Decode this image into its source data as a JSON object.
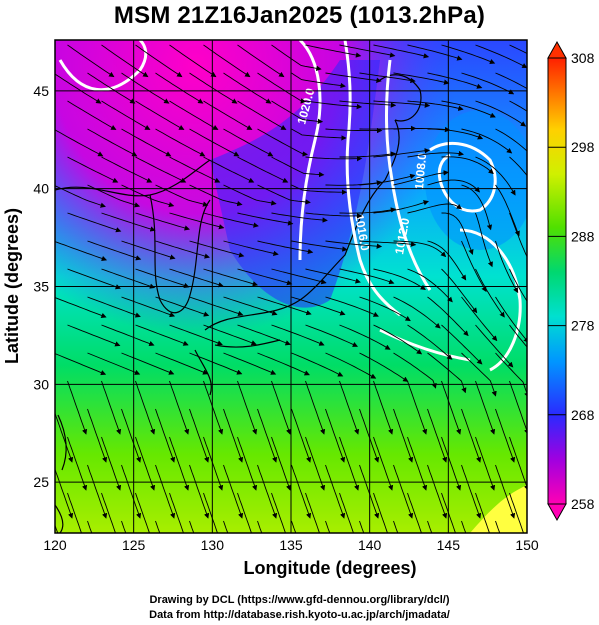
{
  "title": "MSM 21Z16Jan2025 (1013.2hPa)",
  "xlabel": "Longitude (degrees)",
  "ylabel": "Latitude  (degrees)",
  "credit_line1": "Drawing by DCL (https://www.gfd-dennou.org/library/dcl/)",
  "credit_line2": "Data from http://database.rish.kyoto-u.ac.jp/arch/jmadata/",
  "map": {
    "lon_range": [
      120,
      150
    ],
    "lat_range": [
      22.4,
      47.6
    ],
    "x_ticks": [
      120,
      125,
      130,
      135,
      140,
      145,
      150
    ],
    "y_ticks": [
      25,
      30,
      35,
      40,
      45
    ],
    "x_tick_labels": [
      "120",
      "125",
      "130",
      "135",
      "140",
      "145",
      "150"
    ],
    "y_tick_labels": [
      "25",
      "30",
      "35",
      "40",
      "45"
    ],
    "gridlines": true,
    "field": "temperature (K)",
    "pressure_level_hPa": 1013.2
  },
  "colorbar": {
    "min": 258,
    "max": 308,
    "labels": [
      "308",
      "298",
      "288",
      "278",
      "268",
      "258"
    ],
    "colors": [
      "#ff00b4",
      "#3c3cff",
      "#00b4ff",
      "#00e6a0",
      "#00d040",
      "#b4ee00",
      "#ffff00",
      "#ffb400",
      "#ff3000"
    ],
    "extend": "both"
  },
  "contours": {
    "color": "#ffffff",
    "labels": [
      "1020.0",
      "1016.0",
      "1012.0",
      "1008.0"
    ]
  }
}
